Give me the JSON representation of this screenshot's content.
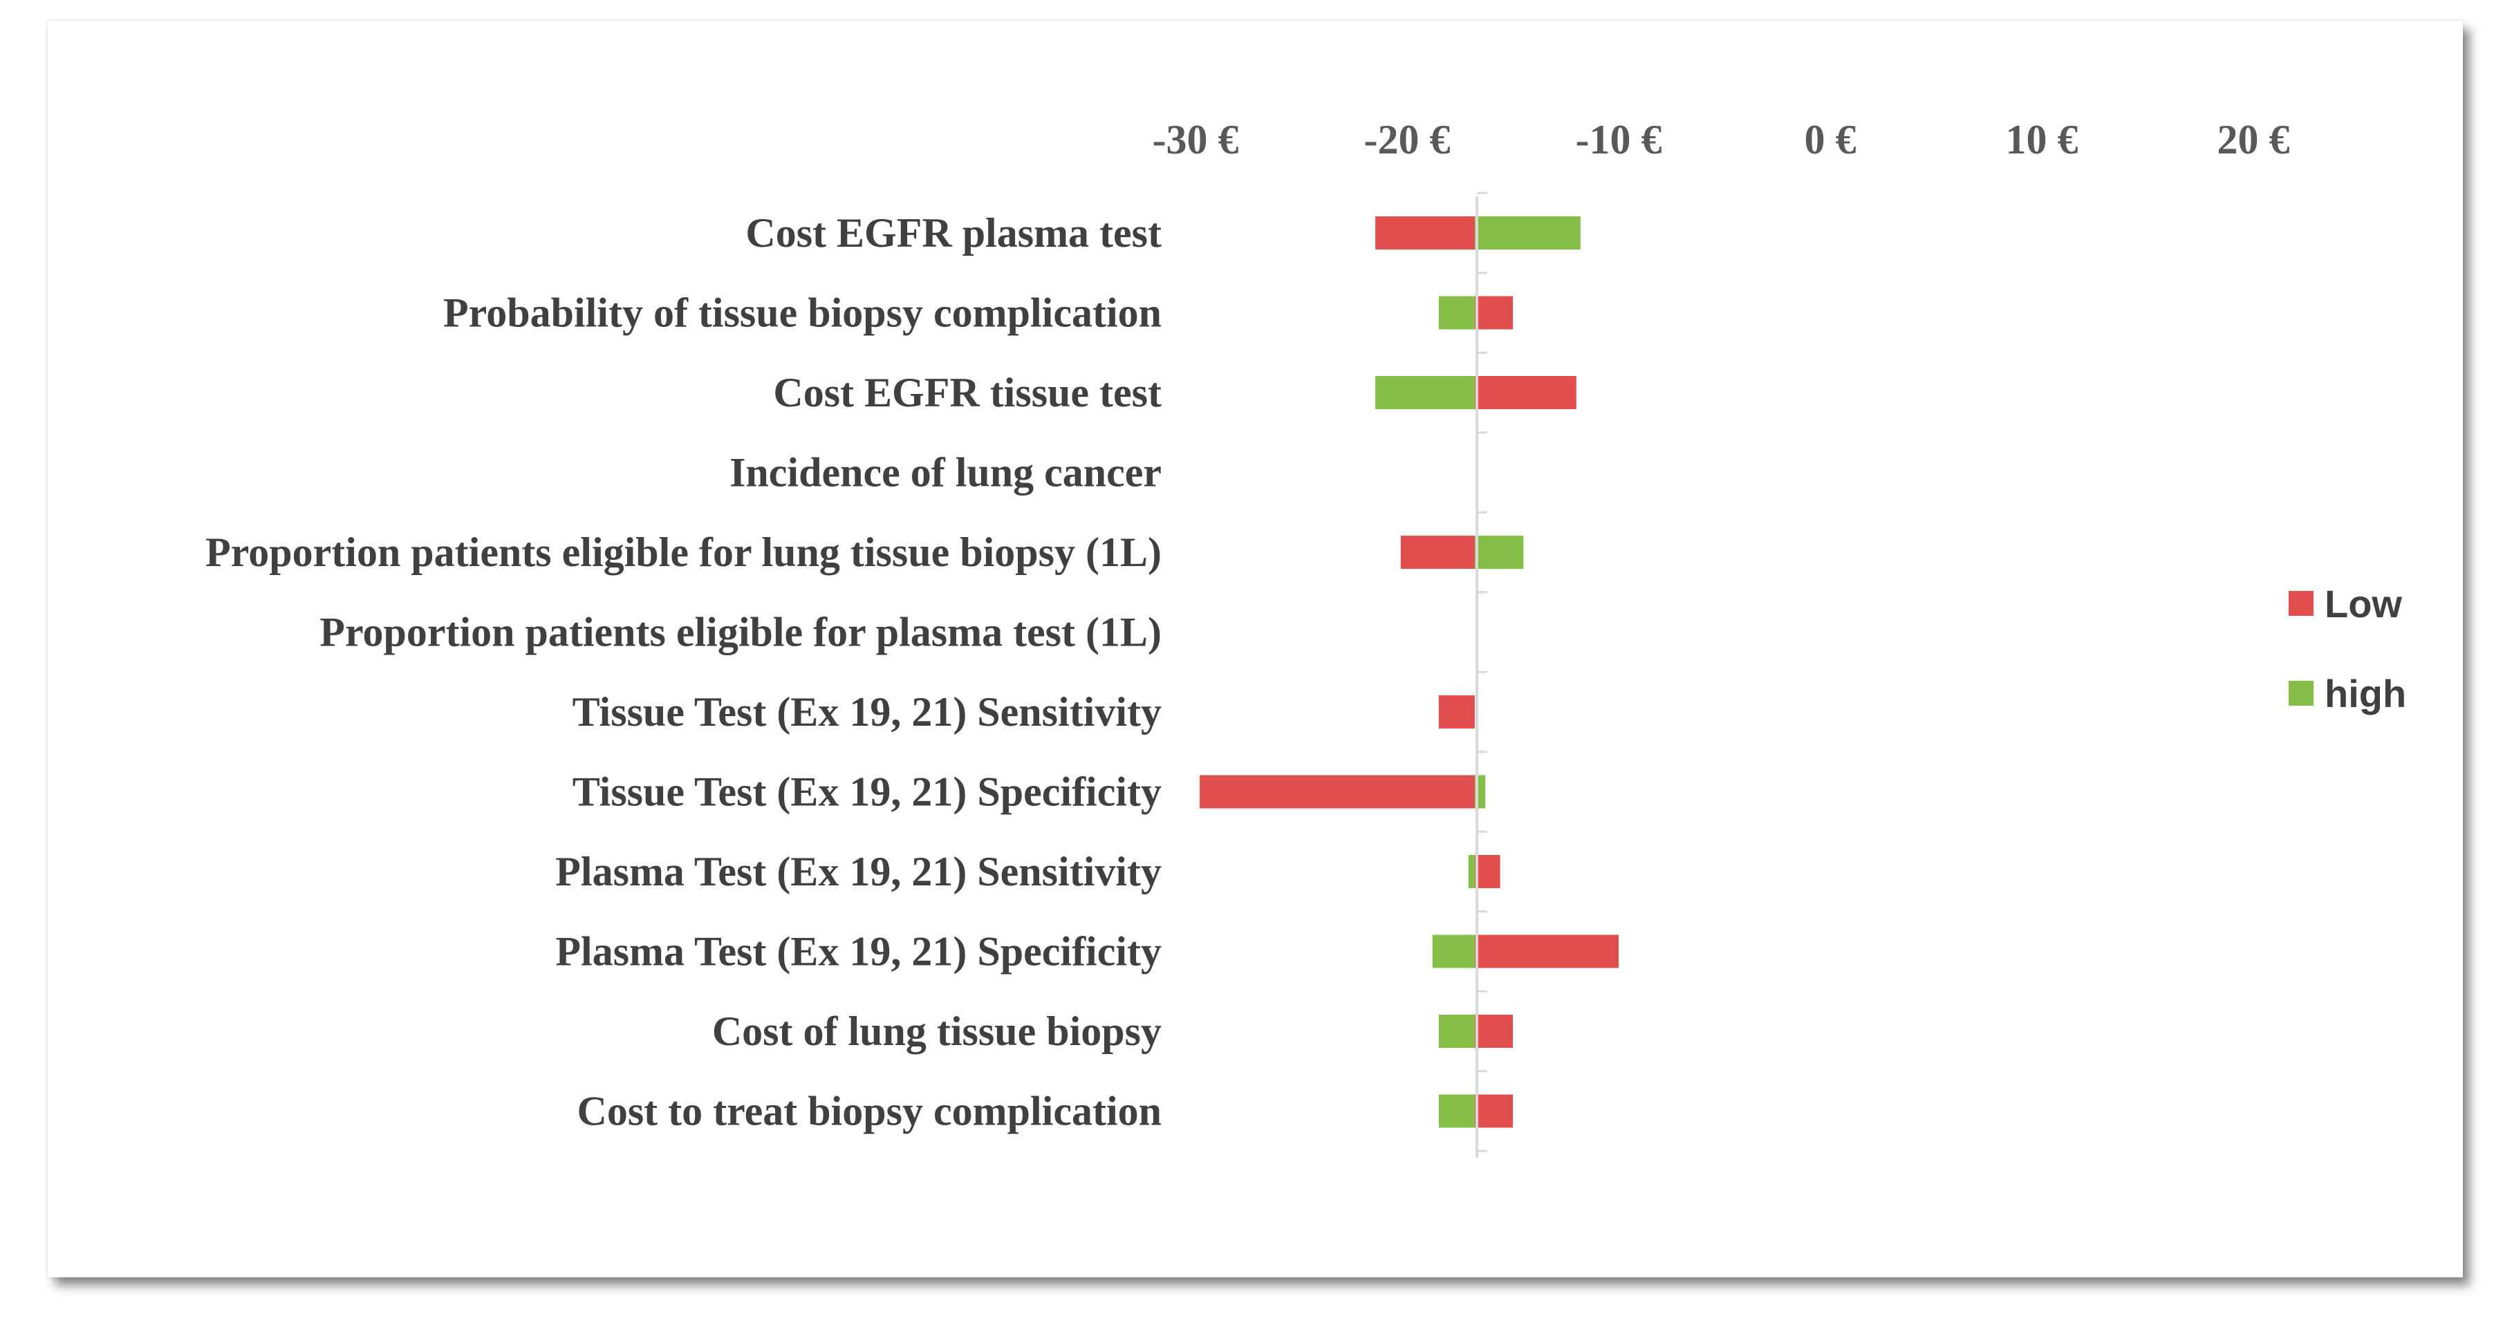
{
  "chart_data": {
    "type": "bar",
    "orientation": "horizontal",
    "stacked_tornado": true,
    "x_ticks": [
      "-30 €",
      "-20 €",
      "-10 €",
      "0 €",
      "10 €",
      "20 €"
    ],
    "x_tick_values": [
      -30,
      -20,
      -10,
      0,
      10,
      20
    ],
    "xlim": [
      -30,
      20
    ],
    "base_value": -16.8,
    "categories": [
      "Cost EGFR plasma test",
      "Probability of tissue biopsy complication",
      "Cost EGFR tissue test",
      "Incidence of lung cancer",
      "Proportion patients eligible for lung tissue biopsy (1L)",
      "Proportion patients eligible for plasma test (1L)",
      "Tissue Test (Ex 19, 21) Sensitivity",
      "Tissue Test (Ex 19, 21) Specificity",
      "Plasma Test (Ex 19, 21) Sensitivity",
      "Plasma Test (Ex 19, 21) Specificity",
      "Cost of lung tissue biopsy",
      "Cost to treat biopsy complication"
    ],
    "series": [
      {
        "name": "Low",
        "color": "#e04e4e",
        "values": [
          -21.5,
          -15.0,
          -12.0,
          -16.8,
          -20.3,
          -16.8,
          -18.5,
          -29.8,
          -15.6,
          -10.0,
          -15.0,
          -15.0
        ]
      },
      {
        "name": "high",
        "color": "#86bf48",
        "values": [
          -11.8,
          -18.5,
          -21.5,
          -16.8,
          -14.5,
          -16.8,
          -16.8,
          -16.3,
          -17.1,
          -18.8,
          -18.5,
          -18.5
        ]
      }
    ],
    "legend_position": "right",
    "grid": false
  }
}
